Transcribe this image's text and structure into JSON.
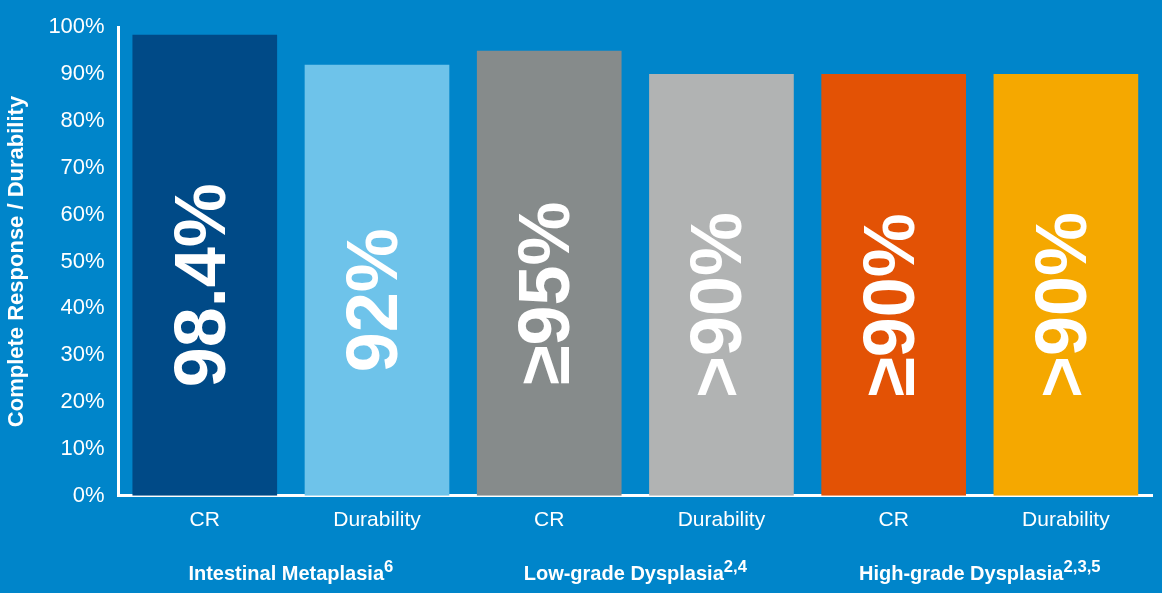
{
  "chart_data": {
    "type": "bar",
    "ylabel": "Complete Response / Durability",
    "categories": [
      "CR",
      "Durability",
      "CR",
      "Durability",
      "CR",
      "Durability"
    ],
    "values": [
      98.4,
      92,
      95,
      90,
      90,
      90
    ],
    "colors": [
      "#004a87",
      "#6ec3ea",
      "#868b8b",
      "#b1b3b3",
      "#e35205",
      "#f5a800"
    ],
    "value_labels": [
      "98.4%",
      "92%",
      "≥95%",
      ">90%",
      "≥90%",
      ">90%"
    ],
    "ylim": [
      0,
      100
    ],
    "yticks": [
      {
        "value": 0,
        "label": "0%"
      },
      {
        "value": 10,
        "label": "10%"
      },
      {
        "value": 20,
        "label": "20%"
      },
      {
        "value": 30,
        "label": "30%"
      },
      {
        "value": 40,
        "label": "40%"
      },
      {
        "value": 50,
        "label": "50%"
      },
      {
        "value": 60,
        "label": "60%"
      },
      {
        "value": 70,
        "label": "70%"
      },
      {
        "value": 80,
        "label": "80%"
      },
      {
        "value": 90,
        "label": "90%"
      },
      {
        "value": 100,
        "label": "100%"
      }
    ],
    "grid": false,
    "legend": false,
    "annotations": [
      "Intestinal Metaplasia$^{6}$",
      "Low-grade Dysplasia$^{2,4}$",
      "High-grade Dysplasia$^{2,3,5}$"
    ]
  }
}
